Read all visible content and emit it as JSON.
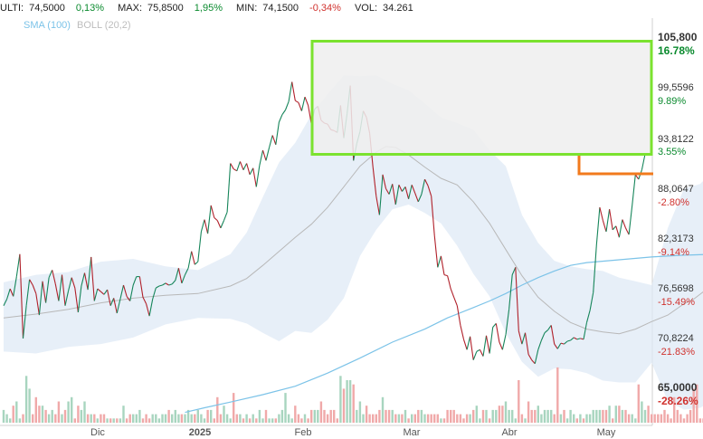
{
  "stats": {
    "last_label": "ULTI:",
    "last_value": "74,5000",
    "last_change": "0,13%",
    "max_label": "MAX:",
    "max_value": "75,8500",
    "max_change": "1,95%",
    "min_label": "MIN:",
    "min_value": "74,1500",
    "min_change": "-0,34%",
    "vol_label": "VOL:",
    "vol_value": "34.261"
  },
  "legend": {
    "sma": "SMA (100)",
    "boll": "BOLL (20,2)"
  },
  "colors": {
    "up": "#16855a",
    "down": "#b0202a",
    "sma": "#7cc3e8",
    "boll_mid": "#b8b8b8",
    "boll_band": "#dfeaf6",
    "vol_up": "#a8d5bf",
    "vol_down": "#f0a9a9",
    "zone_green": "#7be22f",
    "zone_orange": "#f27a1c",
    "pos_text": "#0a8a2e",
    "neg_text": "#d0312d"
  },
  "chart_data": {
    "type": "line",
    "x_labels": [
      "Dic",
      "2025",
      "Feb",
      "Mar",
      "Abr",
      "May"
    ],
    "ylim": [
      65,
      105.8
    ],
    "y_ticks": [
      {
        "value": "105,800",
        "pct": "16.78%"
      },
      {
        "value": "99,5596",
        "pct": "9.89%"
      },
      {
        "value": "93,8122",
        "pct": "3.55%"
      },
      {
        "value": "88,0647",
        "pct": "-2.80%"
      },
      {
        "value": "82,3173",
        "pct": "-9.14%"
      },
      {
        "value": "76,5698",
        "pct": "-15.49%"
      },
      {
        "value": "70,8224",
        "pct": "-21.83%"
      },
      {
        "value": "65,0000",
        "pct": "-28.26%"
      }
    ],
    "price": [
      77.5,
      78.2,
      79.3,
      78.5,
      80.6,
      83.0,
      74.0,
      77.5,
      80.3,
      79.7,
      78.8,
      76.5,
      80.1,
      77.8,
      80.5,
      81.3,
      79.8,
      78.0,
      80.8,
      77.5,
      79.1,
      80.5,
      79.4,
      76.8,
      79.6,
      81.0,
      79.2,
      82.7,
      78.0,
      79.3,
      79.0,
      78.7,
      79.2,
      77.5,
      78.3,
      76.7,
      78.2,
      79.7,
      78.5,
      78.0,
      79.7,
      80.6,
      80.6,
      78.4,
      77.7,
      76.4,
      78.2,
      79.4,
      79.6,
      79.7,
      79.9,
      79.7,
      79.8,
      80.2,
      81.5,
      79.9,
      80.8,
      81.5,
      83.3,
      81.9,
      82.2,
      85.4,
      86.7,
      85.2,
      88.2,
      86.9,
      86.6,
      85.8,
      86.6,
      87.5,
      92.7,
      92.1,
      91.9,
      92.9,
      92.0,
      92.7,
      91.5,
      92.2,
      90.2,
      92.5,
      94.1,
      93.0,
      94.4,
      95.7,
      94.7,
      97.1,
      97.9,
      98.4,
      99.3,
      101.4,
      99.4,
      99.2,
      98.3,
      99.8,
      98.9,
      96.9,
      98.5,
      98.8,
      97.3,
      97.0,
      96.9,
      96.3,
      96.2,
      96.0,
      98.9,
      95.4,
      98.0,
      101.0,
      93.0,
      94.8,
      96.1,
      98.3,
      97.6,
      95.9,
      92.3,
      89.2,
      87.2,
      91.5,
      90.0,
      89.4,
      90.5,
      88.3,
      90.4,
      89.7,
      90.2,
      88.9,
      90.4,
      89.5,
      88.6,
      89.4,
      91.0,
      90.3,
      89.2,
      85.0,
      81.6,
      82.8,
      80.8,
      80.7,
      79.3,
      78.4,
      77.5,
      75.4,
      73.9,
      72.8,
      74.2,
      71.7,
      72.6,
      72.8,
      72.1,
      74.3,
      72.4,
      75.2,
      75.6,
      73.6,
      72.8,
      74.4,
      77.1,
      80.8,
      81.6,
      74.8,
      73.4,
      74.6,
      72.3,
      71.7,
      71.3,
      72.8,
      73.8,
      74.6,
      74.9,
      75.4,
      73.4,
      72.9,
      73.5,
      73.4,
      73.7,
      73.8,
      74.1,
      73.9,
      74.0,
      73.9,
      75.7,
      77.0,
      78.9,
      84.0,
      88.0,
      86.6,
      85.4,
      87.8,
      85.6,
      86.0,
      84.8,
      86.7,
      85.8,
      85.1,
      88.2,
      91.5,
      91.0,
      92.0,
      93.7
    ],
    "sma100": [
      null,
      null,
      null,
      null,
      null,
      null,
      null,
      null,
      null,
      null,
      null,
      null,
      null,
      null,
      null,
      null,
      null,
      null,
      null,
      null,
      null,
      null,
      null,
      null,
      null,
      null,
      null,
      null,
      null,
      null,
      null,
      null,
      null,
      null,
      null,
      null,
      null,
      null,
      null,
      null,
      null,
      null,
      null,
      null,
      null,
      null,
      null,
      null,
      null,
      null,
      null,
      null,
      null,
      null,
      null,
      null,
      null,
      null,
      null,
      null,
      null,
      null,
      null,
      null,
      null,
      null,
      null,
      null,
      null,
      null,
      null,
      null,
      null,
      null,
      null,
      null,
      null,
      null,
      null,
      null,
      null,
      null,
      null,
      null,
      null,
      null,
      null,
      null,
      null,
      null,
      null,
      null,
      null,
      null,
      null,
      null,
      null,
      null,
      null,
      null,
      null,
      null,
      null,
      null,
      null,
      null,
      null,
      null,
      null,
      null,
      null,
      null,
      null,
      null,
      null,
      null,
      null,
      null,
      null,
      null,
      null,
      null,
      null,
      null,
      null,
      null,
      null,
      null,
      null,
      null,
      null,
      null,
      null,
      null,
      null,
      null,
      null,
      null,
      null,
      null,
      null,
      null,
      null,
      null,
      null,
      null,
      null,
      null,
      null,
      null,
      null,
      null,
      null,
      null,
      null,
      null,
      null,
      null,
      null,
      null,
      null,
      null,
      null,
      null,
      null,
      null,
      null,
      null,
      null,
      null,
      null,
      null,
      null,
      null,
      null,
      null,
      null,
      null,
      null,
      null,
      null,
      null,
      null,
      null,
      null,
      null,
      null,
      null,
      null,
      null,
      null,
      null,
      null,
      null,
      null,
      null,
      null,
      null,
      null,
      null,
      null,
      null,
      null,
      null,
      null,
      null,
      null,
      null,
      null,
      null,
      null,
      null,
      null,
      null,
      null,
      null,
      null,
      null,
      null,
      null
    ],
    "sma100_pts": [
      [
        56,
        66.1
      ],
      [
        62,
        66.6
      ],
      [
        70,
        67.2
      ],
      [
        80,
        68.0
      ],
      [
        90,
        68.9
      ],
      [
        100,
        70.3
      ],
      [
        110,
        71.9
      ],
      [
        120,
        73.6
      ],
      [
        130,
        75.0
      ],
      [
        137,
        76.2
      ],
      [
        145,
        77.3
      ],
      [
        150,
        78.0
      ],
      [
        155,
        78.8
      ],
      [
        160,
        79.7
      ],
      [
        165,
        80.5
      ],
      [
        170,
        81.2
      ],
      [
        175,
        81.8
      ],
      [
        180,
        82.1
      ],
      [
        190,
        82.4
      ],
      [
        200,
        82.7
      ],
      [
        210,
        82.9
      ],
      [
        220,
        83.0
      ],
      [
        230,
        83.1
      ],
      [
        240,
        83.2
      ],
      [
        245,
        83.2
      ],
      [
        250,
        83.1
      ],
      [
        260,
        83.0
      ],
      [
        270,
        82.9
      ],
      [
        280,
        82.9
      ],
      [
        290,
        82.9
      ],
      [
        300,
        82.9
      ],
      [
        310,
        83.0
      ],
      [
        320,
        83.1
      ],
      [
        330,
        83.2
      ],
      [
        340,
        83.5
      ]
    ],
    "sma_x_scale": "index",
    "boll_mid_pts": [
      [
        0,
        76.2
      ],
      [
        10,
        76.6
      ],
      [
        20,
        77.1
      ],
      [
        30,
        77.8
      ],
      [
        40,
        78.3
      ],
      [
        50,
        78.6
      ],
      [
        60,
        78.8
      ],
      [
        70,
        79.6
      ],
      [
        75,
        80.4
      ],
      [
        80,
        81.8
      ],
      [
        85,
        83.3
      ],
      [
        90,
        84.8
      ],
      [
        95,
        86.2
      ],
      [
        100,
        88.0
      ],
      [
        105,
        90.2
      ],
      [
        110,
        92.4
      ],
      [
        115,
        93.9
      ],
      [
        118,
        94.5
      ],
      [
        121,
        94.4
      ],
      [
        125,
        93.6
      ],
      [
        130,
        92.3
      ],
      [
        135,
        91.1
      ],
      [
        140,
        90.4
      ],
      [
        145,
        88.6
      ],
      [
        150,
        86.3
      ],
      [
        155,
        83.5
      ],
      [
        160,
        80.7
      ],
      [
        165,
        78.4
      ],
      [
        170,
        76.9
      ],
      [
        175,
        75.7
      ],
      [
        180,
        75.0
      ],
      [
        185,
        74.7
      ],
      [
        190,
        74.5
      ],
      [
        195,
        75.0
      ],
      [
        200,
        75.8
      ],
      [
        205,
        76.5
      ],
      [
        210,
        77.7
      ],
      [
        213,
        78.2
      ],
      [
        216,
        79.0
      ],
      [
        219,
        80.1
      ],
      [
        222,
        81.0
      ],
      [
        225,
        82.3
      ]
    ],
    "boll_upper_pts": [
      [
        0,
        80.0
      ],
      [
        10,
        80.8
      ],
      [
        20,
        81.1
      ],
      [
        30,
        82.2
      ],
      [
        40,
        82.5
      ],
      [
        50,
        81.7
      ],
      [
        60,
        81.3
      ],
      [
        70,
        83.0
      ],
      [
        75,
        85.3
      ],
      [
        80,
        89.1
      ],
      [
        85,
        92.8
      ],
      [
        90,
        94.9
      ],
      [
        95,
        97.9
      ],
      [
        100,
        100.1
      ],
      [
        105,
        102.1
      ],
      [
        110,
        102.0
      ],
      [
        115,
        102.1
      ],
      [
        120,
        101.2
      ],
      [
        125,
        100.5
      ],
      [
        130,
        99.1
      ],
      [
        135,
        97.6
      ],
      [
        140,
        97.0
      ],
      [
        145,
        96.3
      ],
      [
        150,
        94.1
      ],
      [
        155,
        92.4
      ],
      [
        160,
        87.2
      ],
      [
        165,
        84.2
      ],
      [
        170,
        82.3
      ],
      [
        175,
        81.7
      ],
      [
        180,
        81.4
      ],
      [
        185,
        81.2
      ],
      [
        190,
        80.5
      ],
      [
        195,
        80.1
      ],
      [
        200,
        79.7
      ],
      [
        205,
        85.8
      ],
      [
        210,
        90.0
      ],
      [
        215,
        90.5
      ],
      [
        220,
        92.3
      ],
      [
        225,
        93.9
      ]
    ],
    "boll_lower_pts": [
      [
        0,
        72.6
      ],
      [
        10,
        72.4
      ],
      [
        20,
        73.1
      ],
      [
        30,
        73.4
      ],
      [
        40,
        74.1
      ],
      [
        50,
        75.5
      ],
      [
        60,
        76.2
      ],
      [
        70,
        76.1
      ],
      [
        75,
        75.6
      ],
      [
        80,
        74.6
      ],
      [
        85,
        73.7
      ],
      [
        90,
        74.8
      ],
      [
        95,
        74.6
      ],
      [
        100,
        76.0
      ],
      [
        105,
        78.3
      ],
      [
        110,
        82.8
      ],
      [
        115,
        85.6
      ],
      [
        120,
        87.8
      ],
      [
        125,
        88.3
      ],
      [
        130,
        87.4
      ],
      [
        135,
        86.3
      ],
      [
        140,
        83.9
      ],
      [
        145,
        80.9
      ],
      [
        150,
        78.5
      ],
      [
        155,
        74.6
      ],
      [
        160,
        71.5
      ],
      [
        165,
        69.9
      ],
      [
        170,
        70.8
      ],
      [
        175,
        70.7
      ],
      [
        180,
        70.3
      ],
      [
        185,
        69.5
      ],
      [
        190,
        69.3
      ],
      [
        195,
        69.3
      ],
      [
        200,
        71.4
      ],
      [
        205,
        67.3
      ],
      [
        210,
        66.4
      ],
      [
        215,
        66.6
      ],
      [
        220,
        67.6
      ],
      [
        225,
        69.2
      ]
    ],
    "volume": [
      3,
      2,
      1,
      4,
      5,
      1,
      2,
      11,
      8,
      2,
      6,
      4,
      4,
      3,
      2,
      3,
      2,
      5,
      2,
      3,
      5,
      6,
      1,
      4,
      3,
      5,
      2,
      2,
      2,
      1,
      2,
      2,
      1,
      1,
      1,
      1,
      1,
      4,
      1,
      2,
      2,
      2,
      3,
      1,
      2,
      1,
      2,
      2,
      1,
      2,
      2,
      3,
      2,
      3,
      2,
      2,
      2,
      3,
      2,
      2,
      3,
      2,
      1,
      3,
      3,
      1,
      6,
      2,
      4,
      2,
      1,
      7,
      2,
      2,
      1,
      2,
      1,
      2,
      1,
      3,
      1,
      3,
      1,
      1,
      1,
      2,
      3,
      7,
      2,
      1,
      4,
      2,
      1,
      2,
      1,
      3,
      3,
      3,
      5,
      3,
      2,
      3,
      3,
      1,
      11,
      8,
      10,
      10,
      9,
      3,
      5,
      2,
      4,
      2,
      2,
      2,
      3,
      6,
      3,
      3,
      3,
      2,
      2,
      2,
      3,
      1,
      2,
      2,
      3,
      3,
      2,
      2,
      2,
      2,
      2,
      1,
      1,
      3,
      3,
      3,
      2,
      2,
      1,
      2,
      2,
      3,
      4,
      1,
      3,
      3,
      1,
      3,
      3,
      4,
      4,
      5,
      3,
      3,
      1,
      10,
      2,
      1,
      5,
      3,
      3,
      4,
      2,
      3,
      3,
      3,
      2,
      13,
      2,
      3,
      1,
      3,
      2,
      1,
      2,
      1,
      2,
      2,
      3,
      3,
      3,
      3,
      3,
      4,
      1,
      4,
      4,
      3,
      3,
      2,
      2,
      1,
      9,
      5,
      3,
      4,
      2,
      2,
      2,
      2,
      3,
      2,
      1,
      6,
      3,
      2,
      1,
      2,
      3,
      8,
      9,
      1,
      1,
      1,
      3,
      4,
      3,
      3,
      2,
      2,
      2
    ]
  }
}
